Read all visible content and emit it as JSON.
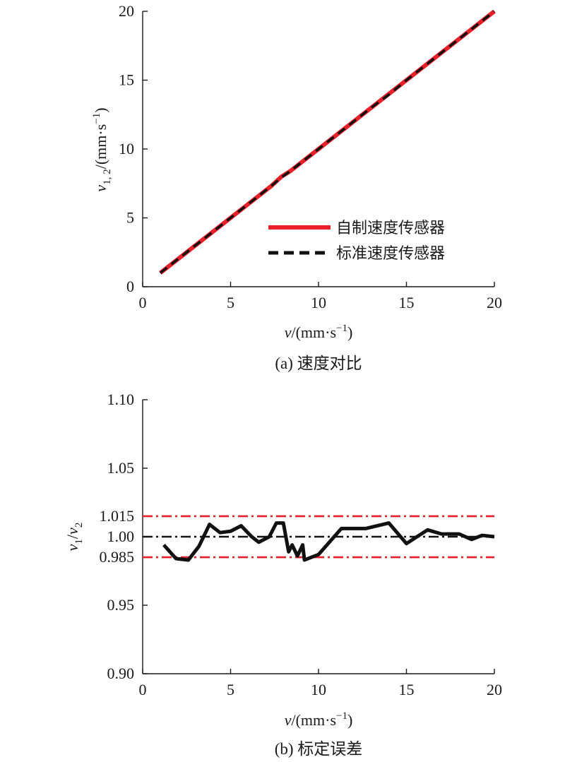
{
  "chart_data": [
    {
      "type": "line",
      "caption": "(a) 速度对比",
      "xlabel": "v/(mm·s⁻¹)",
      "ylabel": "v1,2/(mm·s⁻¹)",
      "xlim": [
        0,
        20
      ],
      "ylim": [
        0,
        20
      ],
      "xticks": [
        "0",
        "5",
        "10",
        "15",
        "20"
      ],
      "yticks": [
        "0",
        "5",
        "10",
        "15",
        "20"
      ],
      "grid": false,
      "legend_position": "bottom-right",
      "colors": {
        "self_made": "#e8202a",
        "standard": "#111111"
      },
      "series": [
        {
          "name": "自制速度传感器",
          "x": [
            1,
            1.5,
            2,
            2.7,
            3.5,
            4.2,
            5,
            5.8,
            6.6,
            7.3,
            7.9,
            8.4,
            9,
            10,
            11,
            12,
            13,
            14,
            15,
            15.8,
            16.8,
            17.5,
            18.6,
            19.3,
            20
          ],
          "y": [
            1,
            1.5,
            2,
            2.7,
            3.5,
            4.2,
            5,
            5.8,
            6.6,
            7.3,
            8.0,
            8.4,
            9,
            10,
            11,
            12,
            13,
            14,
            15,
            15.8,
            16.8,
            17.5,
            18.6,
            19.3,
            20
          ]
        },
        {
          "name": "标准速度传感器",
          "x": [
            1,
            1.5,
            2,
            2.7,
            3.5,
            4.2,
            5,
            5.8,
            6.6,
            7.3,
            7.9,
            8.4,
            9,
            10,
            11,
            12,
            13,
            14,
            15,
            15.8,
            16.8,
            17.5,
            18.6,
            19.3,
            20
          ],
          "y": [
            1,
            1.5,
            2,
            2.7,
            3.5,
            4.2,
            5,
            5.8,
            6.6,
            7.3,
            7.95,
            8.4,
            9,
            10,
            11,
            12,
            13,
            13.95,
            15,
            15.8,
            16.8,
            17.5,
            18.6,
            19.3,
            20
          ]
        }
      ]
    },
    {
      "type": "line",
      "caption": "(b) 标定误差",
      "xlabel": "v/(mm·s⁻¹)",
      "ylabel": "v1/v2",
      "xlim": [
        0,
        20
      ],
      "ylim": [
        0.9,
        1.1
      ],
      "xticks": [
        "0",
        "5",
        "10",
        "15",
        "20"
      ],
      "yticks": [
        "0.90",
        "0.95",
        "0.985",
        "1.00",
        "1.015",
        "1.05",
        "1.10"
      ],
      "ytick_values": [
        0.9,
        0.95,
        0.985,
        1.0,
        1.015,
        1.05,
        1.1
      ],
      "grid": false,
      "colors": {
        "ratio": "#111111",
        "limit": "#e8202a",
        "reference": "#111111"
      },
      "reference_lines": [
        {
          "y": 1.015,
          "color": "#e8202a",
          "style": "dash-dot"
        },
        {
          "y": 1.0,
          "color": "#111111",
          "style": "dash-dot"
        },
        {
          "y": 0.985,
          "color": "#e8202a",
          "style": "dash-dot"
        }
      ],
      "series": [
        {
          "x": [
            1.2,
            1.9,
            2.6,
            3.2,
            3.8,
            4.4,
            5.0,
            5.6,
            6.2,
            6.6,
            7.2,
            7.6,
            8.0,
            8.3,
            8.5,
            8.8,
            9.1,
            9.2,
            10.0,
            11.3,
            12.7,
            14.0,
            15.0,
            16.2,
            17.0,
            18.0,
            18.7,
            19.3,
            20.0
          ],
          "y": [
            0.994,
            0.984,
            0.983,
            0.993,
            1.009,
            1.003,
            1.004,
            1.008,
            1.0,
            0.996,
            1.0,
            1.01,
            1.01,
            0.989,
            0.994,
            0.986,
            0.994,
            0.983,
            0.987,
            1.006,
            1.006,
            1.01,
            0.995,
            1.005,
            1.002,
            1.002,
            0.998,
            1.001,
            1.0
          ]
        }
      ]
    }
  ]
}
